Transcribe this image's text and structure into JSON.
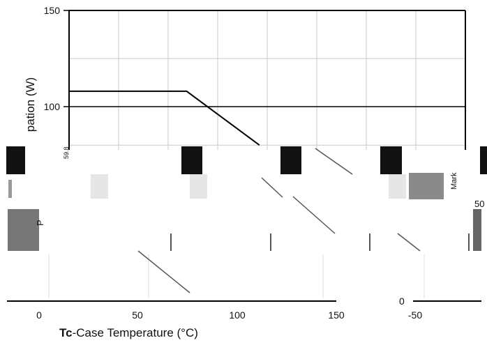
{
  "chart_data": {
    "type": "line",
    "title": "",
    "ylabel": "pation (W)",
    "xlabel_bold": "Tc",
    "xlabel_rest": "-Case Temperature (°C)",
    "ylim": [
      60,
      150
    ],
    "yticks": [
      "150",
      "100"
    ],
    "xticks": [
      "0",
      "50",
      "100",
      "150",
      "-50"
    ],
    "grid": true,
    "series": [
      {
        "x": [
          -25,
          75,
          112
        ],
        "y": [
          108,
          108,
          80
        ]
      }
    ],
    "corner_label": "0",
    "fragment_texts": [
      "P",
      "50",
      "Mark",
      "59.8"
    ],
    "colors": {
      "line": "#000000",
      "grid": "#c8c8c8",
      "block": "#111111",
      "fragment": "#888888"
    }
  }
}
